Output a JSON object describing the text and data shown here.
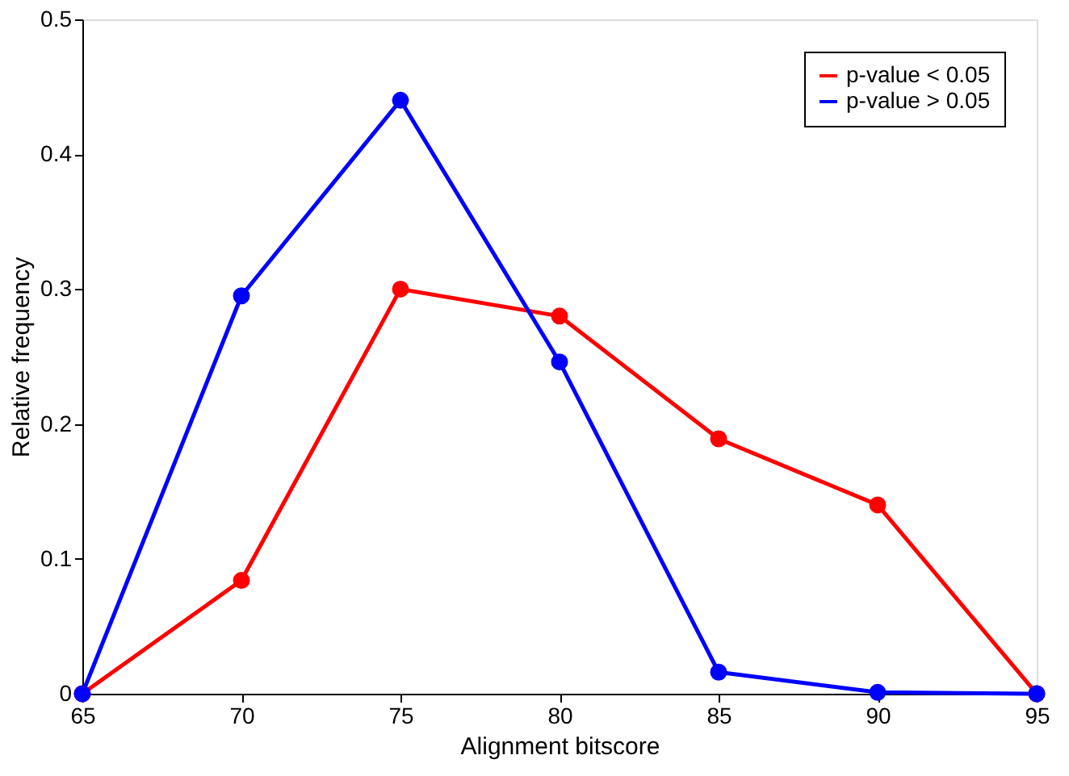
{
  "chart_data": {
    "type": "line",
    "xlabel": "Alignment bitscore",
    "ylabel": "Relative frequency",
    "x": [
      65,
      70,
      75,
      80,
      85,
      90,
      95
    ],
    "series": [
      {
        "name": "p-value < 0.05",
        "color": "#ff0000",
        "values": [
          0,
          0.084,
          0.3,
          0.28,
          0.189,
          0.14,
          0
        ]
      },
      {
        "name": "p-value > 0.05",
        "color": "#0000ff",
        "values": [
          0,
          0.295,
          0.44,
          0.246,
          0.016,
          0.001,
          0
        ]
      }
    ],
    "xlim": [
      65,
      95
    ],
    "xticks": [
      65,
      70,
      75,
      80,
      85,
      90,
      95
    ],
    "ylim": [
      0,
      0.5
    ],
    "yticks": [
      0,
      0.1,
      0.2,
      0.3,
      0.4,
      0.5
    ],
    "grid": false,
    "legend": "top right",
    "marker": "circle",
    "line_style": "solid"
  }
}
